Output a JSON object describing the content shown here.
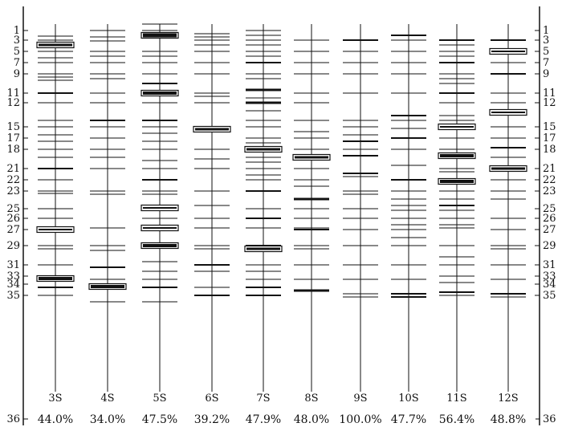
{
  "axis": {
    "ticks": [
      "1",
      "3",
      "5",
      "7",
      "9",
      "11",
      "12",
      "15",
      "17",
      "18",
      "21",
      "22",
      "23",
      "25",
      "26",
      "27",
      "29",
      "31",
      "33",
      "34",
      "35",
      "36"
    ],
    "tick_values": [
      1,
      3,
      5,
      7,
      9,
      11,
      12,
      15,
      17,
      18,
      21,
      22,
      23,
      25,
      26,
      27,
      29,
      31,
      33,
      34,
      35,
      36
    ]
  },
  "lanes": [
    {
      "label": "3S",
      "percent": "44.0%"
    },
    {
      "label": "4S",
      "percent": "34.0%"
    },
    {
      "label": "5S",
      "percent": "47.5%"
    },
    {
      "label": "6S",
      "percent": "39.2%"
    },
    {
      "label": "7S",
      "percent": "47.9%"
    },
    {
      "label": "8S",
      "percent": "48.0%"
    },
    {
      "label": "9S",
      "percent": "100.0%"
    },
    {
      "label": "10S",
      "percent": "47.7%"
    },
    {
      "label": "11S",
      "percent": "56.4%"
    },
    {
      "label": "12S",
      "percent": "48.8%"
    }
  ],
  "chart_data": {
    "type": "other",
    "band_line_color": "#111111",
    "boxed_band_fill": "#ffffff"
  }
}
